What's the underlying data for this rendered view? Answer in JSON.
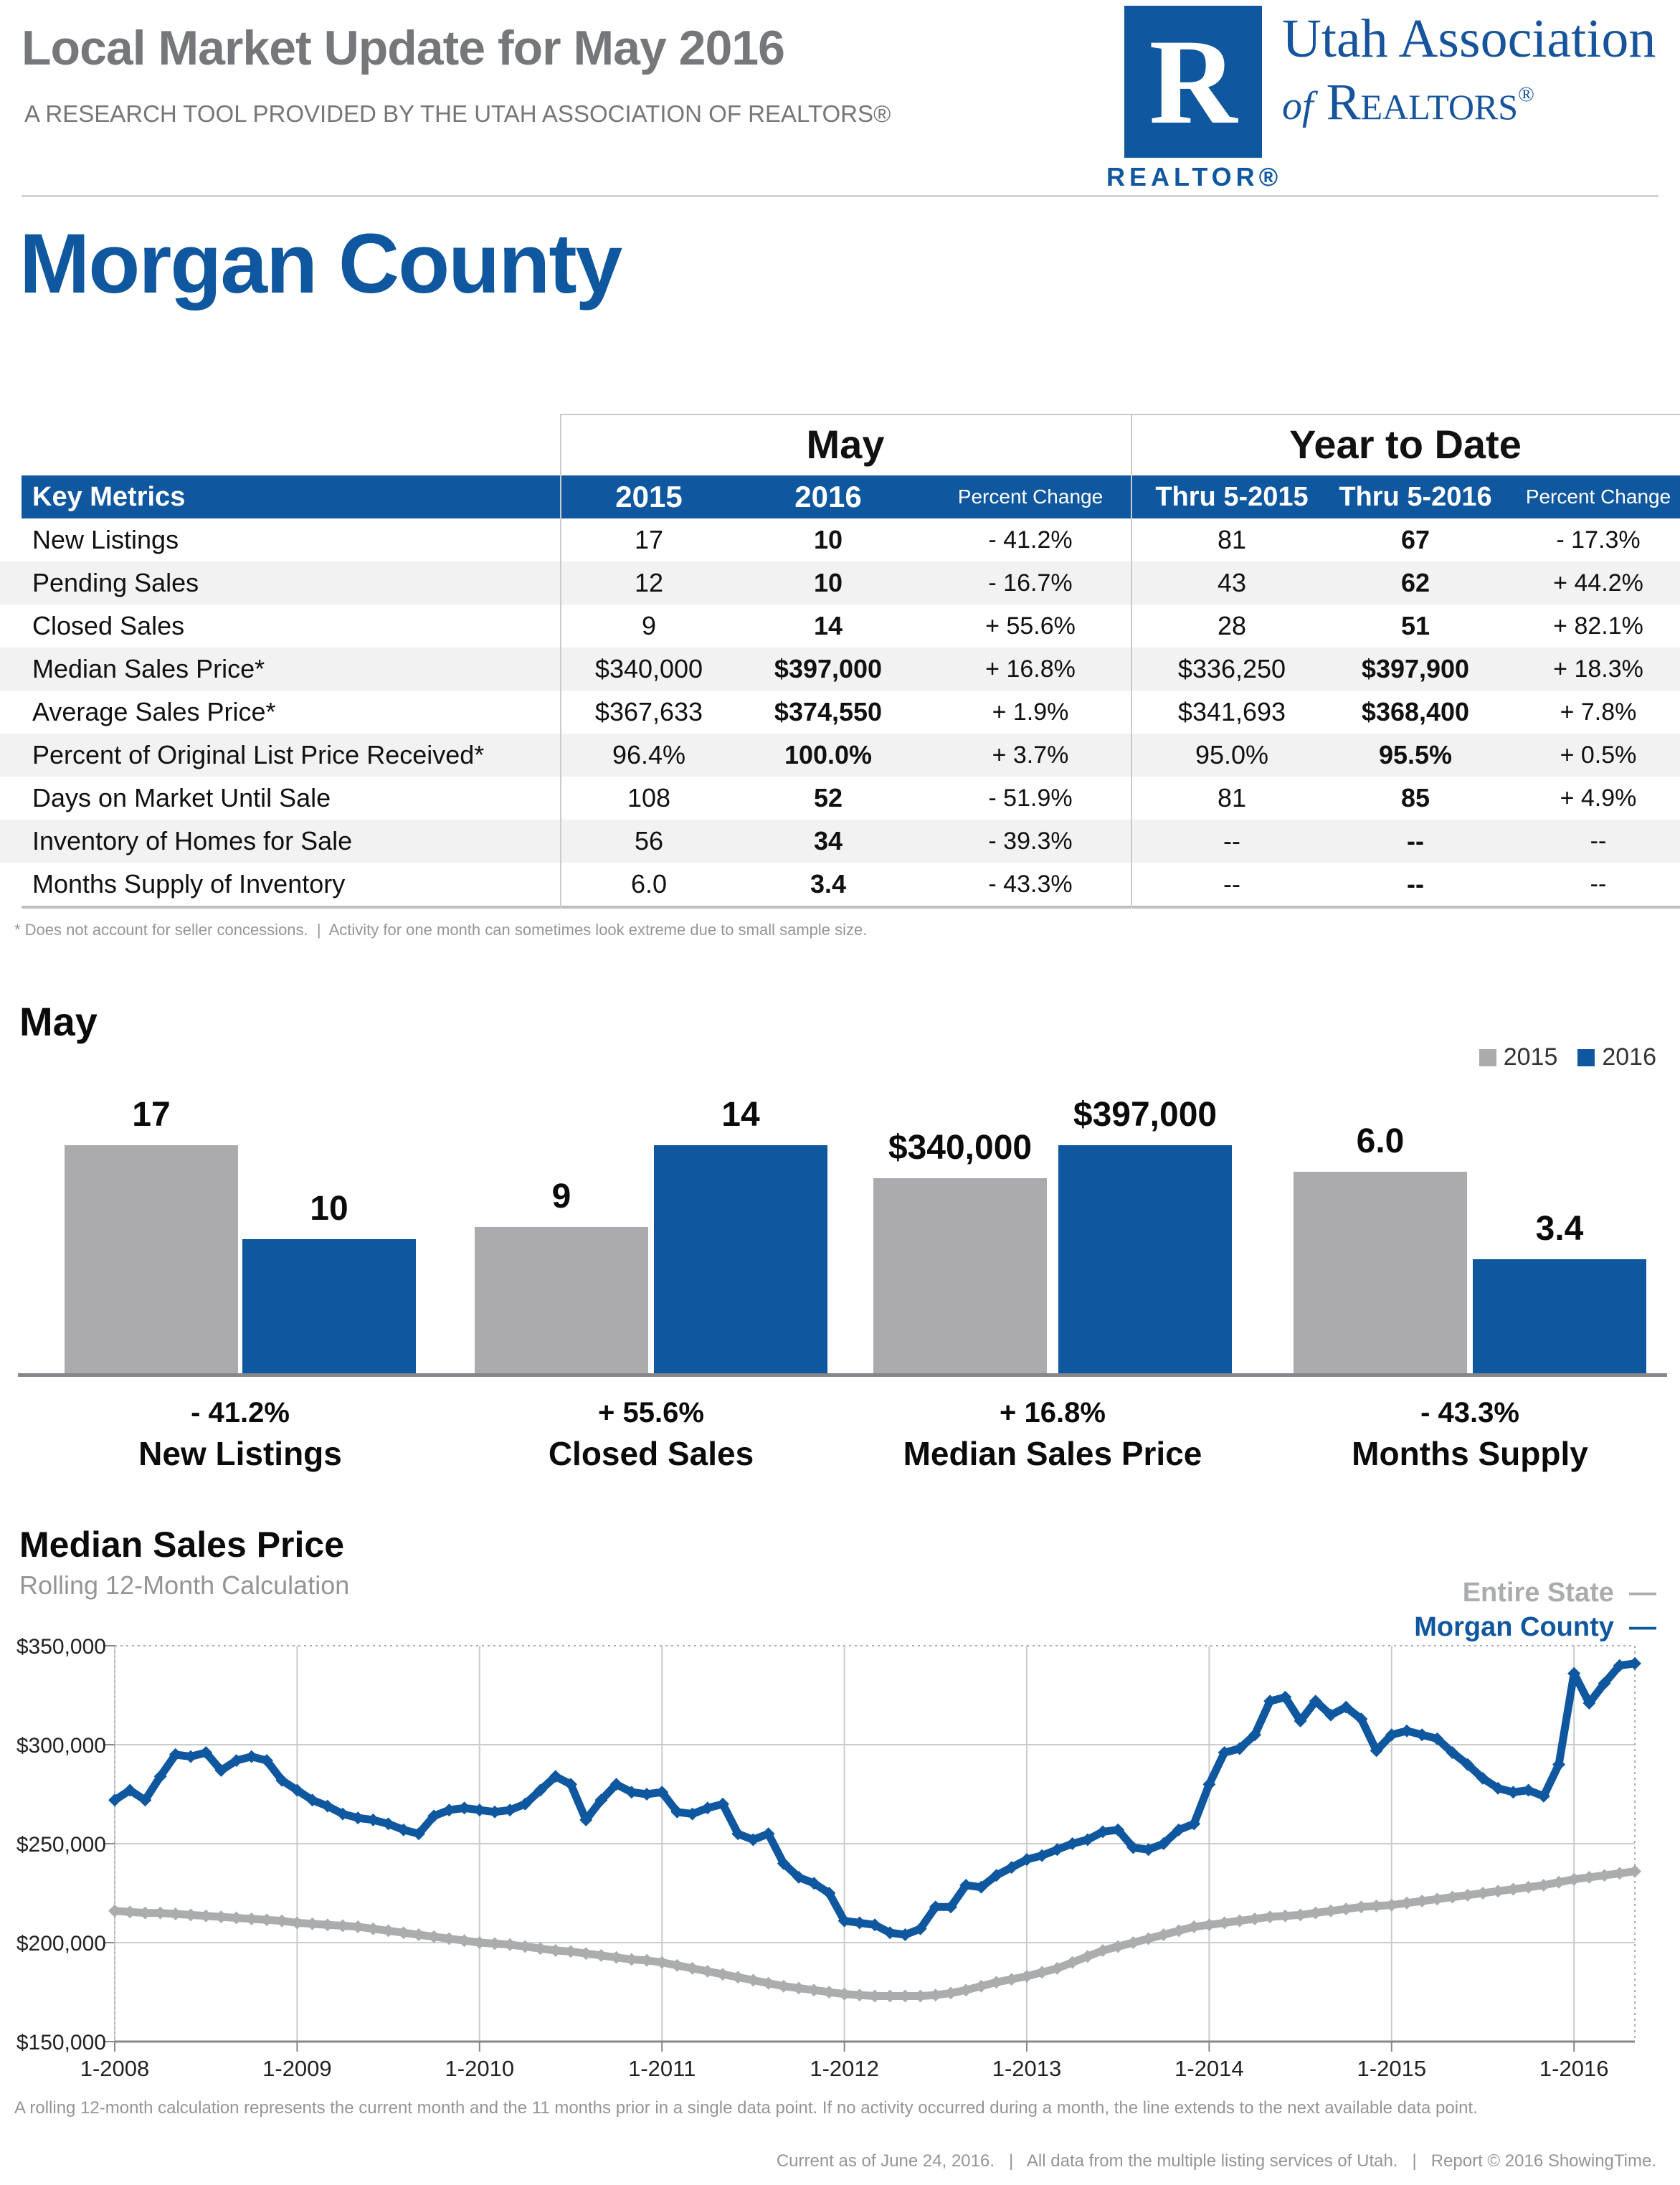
{
  "header": {
    "title": "Local Market Update for May 2016",
    "subtitle": "A RESEARCH TOOL PROVIDED BY THE UTAH ASSOCIATION OF REALTORS®",
    "logo": {
      "r_glyph": "R",
      "realtor_word": "REALTOR®",
      "org_line1": "Utah Association",
      "org_line2_of": "of",
      "org_line2_name": "Realtors",
      "org_line2_reg": "®"
    }
  },
  "page_title": "Morgan County",
  "key_metrics_table": {
    "group_left_label": "May",
    "group_right_label": "Year to Date",
    "header": {
      "key_metrics": "Key Metrics",
      "may_2015": "2015",
      "may_2016": "2016",
      "may_pct": "Percent Change",
      "ytd_2015": "Thru 5-2015",
      "ytd_2016": "Thru 5-2016",
      "ytd_pct": "Percent Change"
    },
    "rows": [
      {
        "metric": "New Listings",
        "may_2015": "17",
        "may_2016": "10",
        "may_pct": "- 41.2%",
        "ytd_2015": "81",
        "ytd_2016": "67",
        "ytd_pct": "- 17.3%"
      },
      {
        "metric": "Pending Sales",
        "may_2015": "12",
        "may_2016": "10",
        "may_pct": "- 16.7%",
        "ytd_2015": "43",
        "ytd_2016": "62",
        "ytd_pct": "+ 44.2%"
      },
      {
        "metric": "Closed Sales",
        "may_2015": "9",
        "may_2016": "14",
        "may_pct": "+ 55.6%",
        "ytd_2015": "28",
        "ytd_2016": "51",
        "ytd_pct": "+ 82.1%"
      },
      {
        "metric": "Median Sales Price*",
        "may_2015": "$340,000",
        "may_2016": "$397,000",
        "may_pct": "+ 16.8%",
        "ytd_2015": "$336,250",
        "ytd_2016": "$397,900",
        "ytd_pct": "+ 18.3%"
      },
      {
        "metric": "Average Sales Price*",
        "may_2015": "$367,633",
        "may_2016": "$374,550",
        "may_pct": "+ 1.9%",
        "ytd_2015": "$341,693",
        "ytd_2016": "$368,400",
        "ytd_pct": "+ 7.8%"
      },
      {
        "metric": "Percent of Original List Price Received*",
        "may_2015": "96.4%",
        "may_2016": "100.0%",
        "may_pct": "+ 3.7%",
        "ytd_2015": "95.0%",
        "ytd_2016": "95.5%",
        "ytd_pct": "+ 0.5%"
      },
      {
        "metric": "Days on Market Until Sale",
        "may_2015": "108",
        "may_2016": "52",
        "may_pct": "- 51.9%",
        "ytd_2015": "81",
        "ytd_2016": "85",
        "ytd_pct": "+ 4.9%"
      },
      {
        "metric": "Inventory of Homes for Sale",
        "may_2015": "56",
        "may_2016": "34",
        "may_pct": "- 39.3%",
        "ytd_2015": "--",
        "ytd_2016": "--",
        "ytd_pct": "--"
      },
      {
        "metric": "Months Supply of Inventory",
        "may_2015": "6.0",
        "may_2016": "3.4",
        "may_pct": "- 43.3%",
        "ytd_2015": "--",
        "ytd_2016": "--",
        "ytd_pct": "--"
      }
    ],
    "footnote": "* Does not account for seller concessions.  |  Activity for one month can sometimes look extreme due to small sample size."
  },
  "chart_data": [
    {
      "type": "bar",
      "title": "May",
      "legend": [
        "2015",
        "2016"
      ],
      "legend_colors": [
        "#ABABAD",
        "#0F579E"
      ],
      "series_names": [
        "2015",
        "2016"
      ],
      "groups": [
        {
          "label": "New Listings",
          "pct_change": "- 41.2%",
          "values": [
            17,
            10
          ],
          "value_labels": [
            "17",
            "10"
          ]
        },
        {
          "label": "Closed Sales",
          "pct_change": "+ 55.6%",
          "values": [
            9,
            14
          ],
          "value_labels": [
            "9",
            "14"
          ]
        },
        {
          "label": "Median Sales Price",
          "pct_change": "+ 16.8%",
          "values": [
            340000,
            397000
          ],
          "value_labels": [
            "$340,000",
            "$397,000"
          ]
        },
        {
          "label": "Months Supply",
          "pct_change": "- 43.3%",
          "values": [
            6.0,
            3.4
          ],
          "value_labels": [
            "6.0",
            "3.4"
          ]
        }
      ]
    },
    {
      "type": "line",
      "title": "Median Sales Price",
      "subtitle": "Rolling 12-Month Calculation",
      "legend": [
        {
          "name": "Entire State",
          "dash": "—",
          "color": "#AAACAE"
        },
        {
          "name": "Morgan County",
          "dash": "—",
          "color": "#0F579E"
        }
      ],
      "x_monthly_start": "2008-01",
      "x_monthly_end": "2016-05",
      "x_tick_labels": [
        "1-2008",
        "1-2009",
        "1-2010",
        "1-2011",
        "1-2012",
        "1-2013",
        "1-2014",
        "1-2015",
        "1-2016"
      ],
      "ylim": [
        150000,
        350000
      ],
      "y_ticks": [
        150000,
        200000,
        250000,
        300000,
        350000
      ],
      "y_tick_labels": [
        "$150,000",
        "$200,000",
        "$250,000",
        "$300,000",
        "$350,000"
      ],
      "grid": true,
      "legend_position": "top-right",
      "series": [
        {
          "name": "Entire State",
          "color": "#AAACAE",
          "values": [
            216000,
            215500,
            215000,
            215000,
            214500,
            214000,
            213500,
            213000,
            212500,
            212000,
            211500,
            211000,
            210000,
            209500,
            209000,
            208500,
            208000,
            207000,
            206000,
            205000,
            204000,
            203000,
            202000,
            201000,
            200000,
            199500,
            199000,
            198000,
            197000,
            196000,
            195500,
            194500,
            193500,
            192500,
            191500,
            191000,
            190000,
            188500,
            187000,
            185500,
            184000,
            182500,
            181000,
            179500,
            178000,
            177000,
            176000,
            175000,
            174000,
            173500,
            173000,
            173000,
            173000,
            173000,
            173500,
            174500,
            176000,
            178000,
            180000,
            181500,
            183000,
            185000,
            187000,
            190000,
            193000,
            196000,
            198000,
            200000,
            202000,
            204000,
            206000,
            208000,
            209000,
            210000,
            211000,
            212000,
            213000,
            213500,
            214000,
            215000,
            216000,
            217000,
            218000,
            218500,
            219000,
            220000,
            221000,
            222000,
            223000,
            224000,
            225000,
            226000,
            227000,
            228000,
            229000,
            230500,
            232000,
            233000,
            234000,
            235000,
            236000
          ]
        },
        {
          "name": "Morgan County",
          "color": "#0F579E",
          "values": [
            272000,
            277000,
            272000,
            284000,
            295000,
            294000,
            296000,
            287000,
            292000,
            294000,
            292000,
            282000,
            277000,
            272000,
            269000,
            265000,
            263000,
            262000,
            260000,
            257000,
            255000,
            264000,
            267000,
            268000,
            267000,
            266000,
            267000,
            270000,
            277000,
            284000,
            280000,
            262000,
            272000,
            280000,
            276000,
            275000,
            276000,
            266000,
            265000,
            268000,
            270000,
            255000,
            252000,
            255000,
            240000,
            233000,
            230000,
            225000,
            211000,
            210000,
            209000,
            205000,
            204000,
            207000,
            218000,
            218000,
            229000,
            228000,
            234000,
            238000,
            242000,
            244000,
            247000,
            250000,
            252000,
            256000,
            257000,
            248000,
            247000,
            250000,
            257000,
            260000,
            280000,
            296000,
            298000,
            305000,
            322000,
            324000,
            312000,
            322000,
            315000,
            319000,
            313000,
            297000,
            305000,
            307000,
            305000,
            303000,
            296000,
            290000,
            283000,
            278000,
            276000,
            277000,
            274000,
            290000,
            336000,
            321000,
            331000,
            340000,
            341000
          ]
        }
      ],
      "footnote": "A rolling 12-month calculation represents the current month and the 11 months prior in a single data point. If no activity occurred during a month, the line extends to the next available data point."
    }
  ],
  "footer": {
    "text": "Current as of June 24, 2016.   |   All data from the multiple listing services of Utah.   |   Report © 2016 ShowingTime."
  }
}
